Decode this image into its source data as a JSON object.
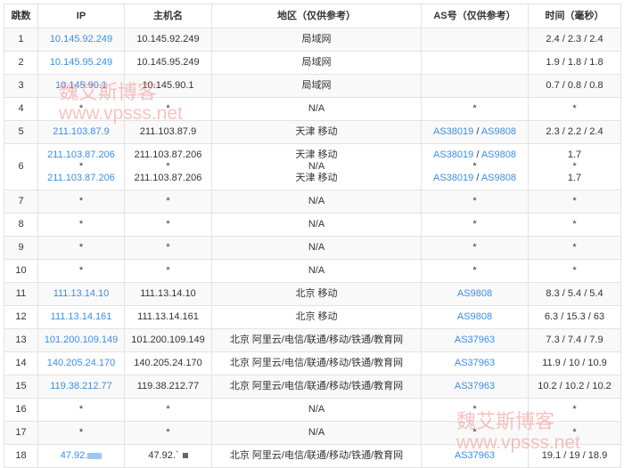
{
  "headers": [
    "跳数",
    "IP",
    "主机名",
    "地区（仅供参考）",
    "AS号（仅供参考）",
    "时间（毫秒）"
  ],
  "rows": [
    {
      "hop": "1",
      "ip": [
        "10.145.92.249"
      ],
      "host": [
        "10.145.92.249"
      ],
      "region": [
        "局域网"
      ],
      "as": [
        ""
      ],
      "time": [
        "2.4 / 2.3 / 2.4"
      ]
    },
    {
      "hop": "2",
      "ip": [
        "10.145.95.249"
      ],
      "host": [
        "10.145.95.249"
      ],
      "region": [
        "局域网"
      ],
      "as": [
        ""
      ],
      "time": [
        "1.9 / 1.8 / 1.8"
      ]
    },
    {
      "hop": "3",
      "ip": [
        "10.145.90.1"
      ],
      "host": [
        "10.145.90.1"
      ],
      "region": [
        "局域网"
      ],
      "as": [
        ""
      ],
      "time": [
        "0.7 / 0.8 / 0.8"
      ]
    },
    {
      "hop": "4",
      "ip": [
        "*"
      ],
      "host": [
        "*"
      ],
      "region": [
        "N/A"
      ],
      "as": [
        "*"
      ],
      "time": [
        "*"
      ]
    },
    {
      "hop": "5",
      "ip": [
        "211.103.87.9"
      ],
      "host": [
        "211.103.87.9"
      ],
      "region": [
        "天津 移动"
      ],
      "as": [
        "AS38019 / AS9808"
      ],
      "time": [
        "2.3 / 2.2 / 2.4"
      ]
    },
    {
      "hop": "6",
      "ip": [
        "211.103.87.206",
        "*",
        "211.103.87.206"
      ],
      "host": [
        "211.103.87.206",
        "*",
        "211.103.87.206"
      ],
      "region": [
        "天津 移动",
        "N/A",
        "天津 移动"
      ],
      "as": [
        "AS38019 / AS9808",
        "*",
        "AS38019 / AS9808"
      ],
      "time": [
        "1.7",
        "*",
        "1.7"
      ]
    },
    {
      "hop": "7",
      "ip": [
        "*"
      ],
      "host": [
        "*"
      ],
      "region": [
        "N/A"
      ],
      "as": [
        "*"
      ],
      "time": [
        "*"
      ]
    },
    {
      "hop": "8",
      "ip": [
        "*"
      ],
      "host": [
        "*"
      ],
      "region": [
        "N/A"
      ],
      "as": [
        "*"
      ],
      "time": [
        "*"
      ]
    },
    {
      "hop": "9",
      "ip": [
        "*"
      ],
      "host": [
        "*"
      ],
      "region": [
        "N/A"
      ],
      "as": [
        "*"
      ],
      "time": [
        "*"
      ]
    },
    {
      "hop": "10",
      "ip": [
        "*"
      ],
      "host": [
        "*"
      ],
      "region": [
        "N/A"
      ],
      "as": [
        "*"
      ],
      "time": [
        "*"
      ]
    },
    {
      "hop": "11",
      "ip": [
        "111.13.14.10"
      ],
      "host": [
        "111.13.14.10"
      ],
      "region": [
        "北京 移动"
      ],
      "as": [
        "AS9808"
      ],
      "time": [
        "8.3 / 5.4 / 5.4"
      ]
    },
    {
      "hop": "12",
      "ip": [
        "111.13.14.161"
      ],
      "host": [
        "111.13.14.161"
      ],
      "region": [
        "北京 移动"
      ],
      "as": [
        "AS9808"
      ],
      "time": [
        "6.3 / 15.3 / 63"
      ]
    },
    {
      "hop": "13",
      "ip": [
        "101.200.109.149"
      ],
      "host": [
        "101.200.109.149"
      ],
      "region": [
        "北京 阿里云/电信/联通/移动/铁通/教育网"
      ],
      "as": [
        "AS37963"
      ],
      "time": [
        "7.3 / 7.4 / 7.9"
      ]
    },
    {
      "hop": "14",
      "ip": [
        "140.205.24.170"
      ],
      "host": [
        "140.205.24.170"
      ],
      "region": [
        "北京 阿里云/电信/联通/移动/铁通/教育网"
      ],
      "as": [
        "AS37963"
      ],
      "time": [
        "11.9 / 10 / 10.9"
      ]
    },
    {
      "hop": "15",
      "ip": [
        "119.38.212.77"
      ],
      "host": [
        "119.38.212.77"
      ],
      "region": [
        "北京 阿里云/电信/联通/移动/铁通/教育网"
      ],
      "as": [
        "AS37963"
      ],
      "time": [
        "10.2 / 10.2 / 10.2"
      ]
    },
    {
      "hop": "16",
      "ip": [
        "*"
      ],
      "host": [
        "*"
      ],
      "region": [
        "N/A"
      ],
      "as": [
        "*"
      ],
      "time": [
        "*"
      ]
    },
    {
      "hop": "17",
      "ip": [
        "*"
      ],
      "host": [
        "*"
      ],
      "region": [
        "N/A"
      ],
      "as": [
        "*"
      ],
      "time": [
        "*"
      ]
    },
    {
      "hop": "18",
      "ip": [
        "47.92."
      ],
      "host": [
        "47.92.`"
      ],
      "region": [
        "北京 阿里云/电信/联通/移动/铁通/教育网"
      ],
      "as": [
        "AS37963"
      ],
      "time": [
        "19.1 / 19 / 18.9"
      ],
      "redacted": true
    }
  ],
  "watermark": {
    "name": "魏艾斯博客",
    "url": "www.vpsss.net",
    "color": "#f07878"
  },
  "link_color": "#3a8ee6"
}
